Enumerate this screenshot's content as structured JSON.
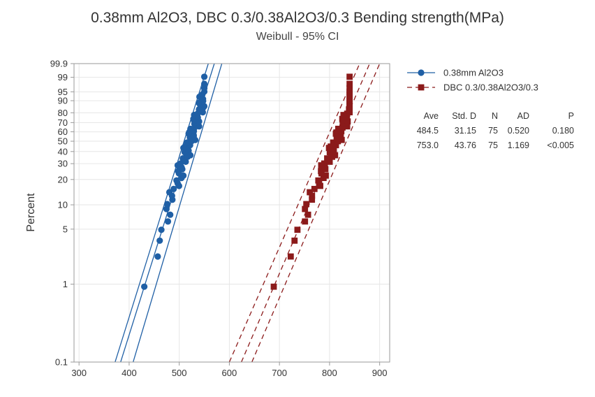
{
  "chart_data": {
    "type": "scatter",
    "title": "0.38mm Al2O3, DBC 0.3/0.38Al2O3/0.3 Bending strength(MPa)",
    "subtitle": "Weibull - 95% CI",
    "xlabel": "",
    "ylabel": "Percent",
    "xlim": [
      290,
      920
    ],
    "x_ticks": [
      "300",
      "400",
      "500",
      "600",
      "700",
      "800",
      "900"
    ],
    "y_scale": "weibull",
    "ylim": [
      0.1,
      99.9
    ],
    "y_ticks": [
      "0.1",
      "1",
      "5",
      "10",
      "20",
      "30",
      "40",
      "50",
      "60",
      "70",
      "80",
      "90",
      "95",
      "99",
      "99.9"
    ],
    "grid": true,
    "legend_position": "right",
    "series": [
      {
        "name": "0.38mm Al2O3",
        "color": "#1f5fa5",
        "marker": "circle",
        "x_min": 398,
        "x_max": 550,
        "fit_line": {
          "x_at_0_1": 383,
          "x_at_99_9": 570
        },
        "ci_lower": {
          "x_at_0_1": 372,
          "x_at_99_9": 558
        },
        "ci_upper": {
          "x_at_0_1": 408,
          "x_at_99_9": 585
        },
        "stats": {
          "ave": "484.5",
          "std_d": "31.15",
          "n": "75",
          "ad": "0.520",
          "p": "0.180"
        }
      },
      {
        "name": "DBC 0.3/0.38Al2O3/0.3",
        "color": "#8b1a1a",
        "marker": "square",
        "x_min": 686,
        "x_max": 840,
        "fit_line": {
          "x_at_0_1": 624,
          "x_at_99_9": 880
        },
        "ci_lower": {
          "x_at_0_1": 600,
          "x_at_99_9": 860
        },
        "ci_upper": {
          "x_at_0_1": 645,
          "x_at_99_9": 900
        },
        "stats": {
          "ave": "753.0",
          "std_d": "43.76",
          "n": "75",
          "ad": "1.169",
          "p": "<0.005"
        }
      }
    ],
    "stats_headers": [
      "Ave",
      "Std. D",
      "N",
      "AD",
      "P"
    ]
  }
}
